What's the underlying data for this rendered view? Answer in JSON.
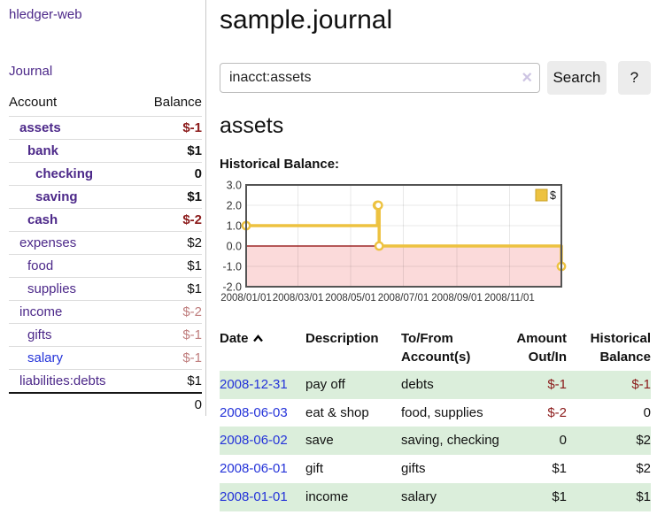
{
  "brand": "hledger-web",
  "sidebar": {
    "journal_link": "Journal",
    "accounts": {
      "header_account": "Account",
      "header_balance": "Balance",
      "rows": [
        {
          "name": "assets",
          "indent": 1,
          "matched": true,
          "balance": "$-1",
          "balance_style": "negative",
          "link_style": "visited"
        },
        {
          "name": "bank",
          "indent": 2,
          "matched": true,
          "balance": "$1",
          "balance_style": "plain",
          "link_style": "visited"
        },
        {
          "name": "checking",
          "indent": 3,
          "matched": true,
          "balance": "0",
          "balance_style": "plain",
          "link_style": "visited"
        },
        {
          "name": "saving",
          "indent": 3,
          "matched": true,
          "balance": "$1",
          "balance_style": "plain",
          "link_style": "visited"
        },
        {
          "name": "cash",
          "indent": 2,
          "matched": true,
          "balance": "$-2",
          "balance_style": "negative",
          "link_style": "visited"
        },
        {
          "name": "expenses",
          "indent": 1,
          "matched": false,
          "balance": "$2",
          "balance_style": "plain",
          "link_style": "visited"
        },
        {
          "name": "food",
          "indent": 2,
          "matched": false,
          "balance": "$1",
          "balance_style": "plain",
          "link_style": "visited"
        },
        {
          "name": "supplies",
          "indent": 2,
          "matched": false,
          "balance": "$1",
          "balance_style": "plain",
          "link_style": "visited"
        },
        {
          "name": "income",
          "indent": 1,
          "matched": false,
          "balance": "$-2",
          "balance_style": "rose",
          "link_style": "visited"
        },
        {
          "name": "gifts",
          "indent": 2,
          "matched": false,
          "balance": "$-1",
          "balance_style": "rose",
          "link_style": "visited"
        },
        {
          "name": "salary",
          "indent": 2,
          "matched": false,
          "balance": "$-1",
          "balance_style": "rose",
          "link_style": "new"
        },
        {
          "name": "liabilities:debts",
          "indent": 1,
          "matched": false,
          "balance": "$1",
          "balance_style": "plain",
          "link_style": "visited"
        }
      ],
      "total": "0"
    }
  },
  "header": {
    "title": "sample.journal"
  },
  "search": {
    "value": "inacct:assets",
    "clear": "×",
    "submit": "Search",
    "help": "?"
  },
  "account_view": {
    "title": "assets",
    "section_label": "Historical Balance:"
  },
  "chart_data": {
    "type": "line",
    "title": "Historical Balance",
    "x_range": [
      "2008-01-01",
      "2008-12-31"
    ],
    "ylim": [
      -2,
      3
    ],
    "yticks": [
      "3.0",
      "2.0",
      "1.0",
      "0.0",
      "-1.0",
      "-2.0"
    ],
    "xticks": [
      "2008/01/01",
      "2008/03/01",
      "2008/05/01",
      "2008/07/01",
      "2008/09/01",
      "2008/11/01"
    ],
    "series": [
      {
        "name": "$",
        "color": "#edc240",
        "style": "step",
        "points": [
          [
            "2008-01-01",
            1
          ],
          [
            "2008-06-01",
            2
          ],
          [
            "2008-06-02",
            2
          ],
          [
            "2008-06-03",
            0
          ],
          [
            "2008-12-31",
            -1
          ]
        ]
      }
    ],
    "legend_position": "top-right",
    "grid": true,
    "negative_region_fill": "#fbdada",
    "zero_line_color": "#8b0000",
    "plot_border_color": "#545454"
  },
  "register": {
    "headers": {
      "date": "Date",
      "description": "Description",
      "accounts": "To/From Account(s)",
      "amount": "Amount Out/In",
      "balance": "Historical Balance"
    },
    "rows": [
      {
        "date": "2008-12-31",
        "description": "pay off",
        "accounts": "debts",
        "amount": "$-1",
        "amount_style": "negative",
        "balance": "$-1",
        "balance_style": "negative"
      },
      {
        "date": "2008-06-03",
        "description": "eat & shop",
        "accounts": "food, supplies",
        "amount": "$-2",
        "amount_style": "negative",
        "balance": "0",
        "balance_style": "plain"
      },
      {
        "date": "2008-06-02",
        "description": "save",
        "accounts": "saving, checking",
        "amount": "0",
        "amount_style": "plain",
        "balance": "$2",
        "balance_style": "plain"
      },
      {
        "date": "2008-06-01",
        "description": "gift",
        "accounts": "gifts",
        "amount": "$1",
        "amount_style": "plain",
        "balance": "$2",
        "balance_style": "plain"
      },
      {
        "date": "2008-01-01",
        "description": "income",
        "accounts": "salary",
        "amount": "$1",
        "amount_style": "plain",
        "balance": "$1",
        "balance_style": "plain"
      }
    ]
  }
}
